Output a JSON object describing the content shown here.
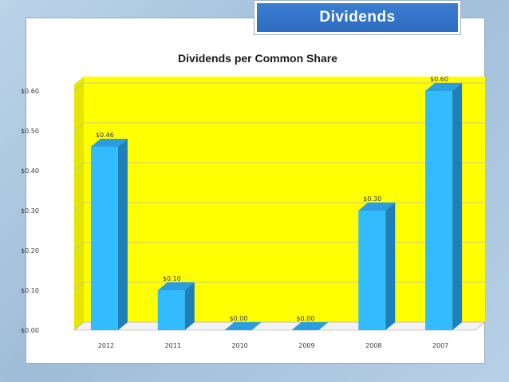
{
  "slide": {
    "title": "Dividends"
  },
  "colors": {
    "plot_bg": "#ffff00",
    "bar_front": "#33bbff",
    "bar_side": "#1f7fb8",
    "bar_top": "#2a9ee0",
    "grid": "#b9b9b9"
  },
  "chart_data": {
    "type": "bar",
    "title": "Dividends per Common Share",
    "categories": [
      "2012",
      "2011",
      "2010",
      "2009",
      "2008",
      "2007"
    ],
    "values": [
      0.46,
      0.1,
      0.0,
      0.0,
      0.3,
      0.6
    ],
    "data_labels": [
      "$0.46",
      "$0.10",
      "$0.00",
      "$0.00",
      "$0.30",
      "$0.60"
    ],
    "yticks": [
      0.0,
      0.1,
      0.2,
      0.3,
      0.4,
      0.5,
      0.6
    ],
    "ytick_labels": [
      "$0.00",
      "$0.10",
      "$0.20",
      "$0.30",
      "$0.40",
      "$0.50",
      "$0.60"
    ],
    "ylim": [
      0,
      0.6
    ],
    "xlabel": "",
    "ylabel": "",
    "grid": true,
    "legend": "none"
  }
}
